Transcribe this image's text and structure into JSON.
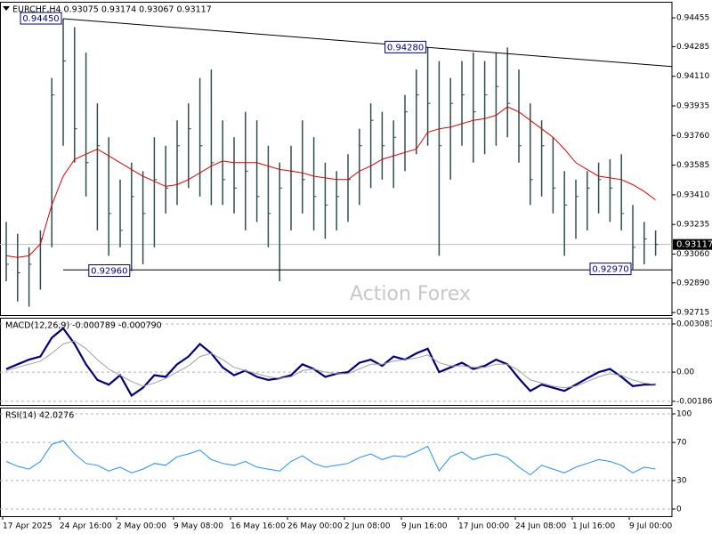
{
  "chart_data": [
    {
      "type": "ohlc",
      "title": "EURCHF,H4  0.93075 0.93174 0.93067 0.93117",
      "watermark": "Action Forex",
      "bar_color": "#2f4f4f",
      "high": [
        0.9325,
        0.9318,
        0.931,
        0.932,
        0.941,
        0.9445,
        0.944,
        0.9425,
        0.9395,
        0.9375,
        0.935,
        0.936,
        0.9355,
        0.9375,
        0.937,
        0.9385,
        0.9395,
        0.941,
        0.9415,
        0.9385,
        0.9375,
        0.939,
        0.9385,
        0.937,
        0.936,
        0.937,
        0.9385,
        0.9375,
        0.936,
        0.9355,
        0.9365,
        0.938,
        0.9395,
        0.939,
        0.9385,
        0.94,
        0.9415,
        0.9428,
        0.942,
        0.941,
        0.942,
        0.9425,
        0.942,
        0.9425,
        0.9428,
        0.9415,
        0.9395,
        0.9385,
        0.9375,
        0.9355,
        0.935,
        0.9355,
        0.936,
        0.9362,
        0.9365,
        0.9335,
        0.9325,
        0.932
      ],
      "low": [
        0.929,
        0.9278,
        0.9275,
        0.9285,
        0.931,
        0.937,
        0.936,
        0.934,
        0.932,
        0.9305,
        0.931,
        0.9296,
        0.93,
        0.931,
        0.933,
        0.9335,
        0.9345,
        0.934,
        0.9335,
        0.9335,
        0.933,
        0.932,
        0.9325,
        0.931,
        0.929,
        0.932,
        0.933,
        0.932,
        0.9315,
        0.932,
        0.9325,
        0.9335,
        0.9345,
        0.935,
        0.9345,
        0.9355,
        0.9365,
        0.937,
        0.9305,
        0.935,
        0.937,
        0.936,
        0.9365,
        0.937,
        0.9375,
        0.936,
        0.9335,
        0.934,
        0.933,
        0.9305,
        0.9315,
        0.932,
        0.933,
        0.9325,
        0.932,
        0.9297,
        0.93,
        0.9305
      ],
      "close": [
        0.93,
        0.9295,
        0.93,
        0.9315,
        0.94,
        0.942,
        0.938,
        0.936,
        0.937,
        0.933,
        0.932,
        0.934,
        0.933,
        0.935,
        0.9345,
        0.937,
        0.938,
        0.937,
        0.936,
        0.935,
        0.9345,
        0.9355,
        0.934,
        0.933,
        0.9345,
        0.9355,
        0.935,
        0.934,
        0.9335,
        0.934,
        0.935,
        0.937,
        0.9385,
        0.937,
        0.9375,
        0.939,
        0.94,
        0.9395,
        0.937,
        0.9395,
        0.94,
        0.939,
        0.94,
        0.9405,
        0.9395,
        0.937,
        0.935,
        0.937,
        0.9345,
        0.9335,
        0.934,
        0.9345,
        0.935,
        0.9345,
        0.933,
        0.931,
        0.9315,
        0.93117
      ],
      "ma": {
        "color": "#e00000",
        "values": [
          0.9305,
          0.9304,
          0.9305,
          0.9312,
          0.9335,
          0.9352,
          0.9362,
          0.9365,
          0.9368,
          0.9364,
          0.936,
          0.9356,
          0.9352,
          0.9349,
          0.9346,
          0.9347,
          0.935,
          0.9354,
          0.9358,
          0.9361,
          0.936,
          0.936,
          0.936,
          0.9358,
          0.9356,
          0.9355,
          0.9354,
          0.9352,
          0.9351,
          0.935,
          0.935,
          0.9355,
          0.9358,
          0.9362,
          0.9364,
          0.9366,
          0.9368,
          0.9378,
          0.938,
          0.9381,
          0.9383,
          0.9385,
          0.9386,
          0.9388,
          0.9393,
          0.939,
          0.9385,
          0.938,
          0.9375,
          0.9368,
          0.936,
          0.9356,
          0.9352,
          0.9351,
          0.935,
          0.9347,
          0.9343,
          0.9338
        ]
      },
      "ylim": [
        0.927,
        0.9455
      ],
      "yticks": [
        0.94455,
        {
          "value": 0.94285,
          "label": "0.94285"
        },
        {
          "value": 0.9411,
          "label": "0.94110"
        },
        0.93935,
        {
          "value": 0.9376,
          "label": "0.93760"
        },
        0.93585,
        {
          "value": 0.9341,
          "label": "0.93410"
        },
        0.93235,
        {
          "value": 0.9306,
          "label": "0.93060"
        },
        {
          "value": 0.9289,
          "label": "0.92890"
        },
        0.92715
      ],
      "last": {
        "value": 0.93117,
        "label": "0.93117"
      },
      "annotations": [
        {
          "label": "0.94450",
          "x": 5,
          "y": 0.9445
        },
        {
          "label": "0.94280",
          "x": 37,
          "y": 0.9428
        },
        {
          "label": "0.92960",
          "x": 11,
          "y": 0.9296
        },
        {
          "label": "0.92970",
          "x": 55,
          "y": 0.9297
        }
      ],
      "trendlines": [
        {
          "from": [
            5,
            0.9445
          ],
          "to": [
            57,
            0.94175
          ]
        },
        {
          "from": [
            5,
            0.92967
          ],
          "to": [
            57,
            0.92967
          ]
        }
      ]
    },
    {
      "type": "line",
      "title": "MACD(12,26,9) -0.000789 -0.000790",
      "grid": true,
      "series": [
        {
          "color": "#000080",
          "width": 2.2,
          "values": [
            0.0002,
            0.0005,
            0.0008,
            0.001,
            0.0022,
            0.0028,
            0.0018,
            0.0005,
            -0.0005,
            -0.0008,
            -0.0002,
            -0.0015,
            -0.001,
            -0.0002,
            -0.0003,
            0.0005,
            0.001,
            0.0018,
            0.0012,
            0.0003,
            -0.0002,
            0.0001,
            -0.0003,
            -0.0005,
            -0.0004,
            -0.0002,
            0.0005,
            0.0002,
            -0.0003,
            -0.0001,
            0,
            0.0006,
            0.0008,
            0.0004,
            0.001,
            0.0008,
            0.0012,
            0.0015,
            0,
            0.0003,
            0.0006,
            0.0002,
            0.0004,
            0.0008,
            0.0005,
            -0.0004,
            -0.0012,
            -0.0008,
            -0.001,
            -0.0012,
            -0.0008,
            -0.0004,
            0,
            0.0002,
            -0.0003,
            -0.0009,
            -0.0008,
            -0.000789
          ]
        },
        {
          "color": "#a0a0a0",
          "width": 1,
          "values": [
            0.0001,
            0.0003,
            0.0005,
            0.0007,
            0.0012,
            0.0018,
            0.002,
            0.0015,
            0.0008,
            0.0002,
            -0.0002,
            -0.0006,
            -0.0009,
            -0.0007,
            -0.0004,
            0,
            0.0004,
            0.001,
            0.0012,
            0.0008,
            0.0003,
            0.0001,
            -0.0001,
            -0.0003,
            -0.0004,
            -0.0003,
            0.0001,
            0.0002,
            0,
            -0.0001,
            -0.0001,
            0.0002,
            0.0005,
            0.0005,
            0.0007,
            0.0008,
            0.0009,
            0.0011,
            0.0006,
            0.0004,
            0.0004,
            0.0003,
            0.0003,
            0.0005,
            0.0005,
            0.0001,
            -0.0005,
            -0.0007,
            -0.0009,
            -0.001,
            -0.0009,
            -0.0006,
            -0.0003,
            -0.0001,
            -0.0002,
            -0.0005,
            -0.0007,
            -0.00079
          ]
        }
      ],
      "ylim": [
        -0.0021,
        0.00348
      ],
      "yticks": [
        0.003081,
        {
          "value": 0,
          "label": "0.00"
        },
        -0.001868
      ]
    },
    {
      "type": "line",
      "title": "RSI(14) 42.0276",
      "grid": true,
      "series": [
        {
          "color": "#1e90ff",
          "width": 1,
          "values": [
            50,
            45,
            42,
            50,
            68,
            72,
            58,
            48,
            46,
            40,
            44,
            38,
            42,
            48,
            46,
            55,
            58,
            62,
            52,
            48,
            46,
            50,
            44,
            42,
            40,
            50,
            56,
            48,
            44,
            46,
            48,
            54,
            58,
            52,
            56,
            55,
            60,
            66,
            40,
            55,
            60,
            52,
            56,
            58,
            54,
            44,
            36,
            46,
            42,
            38,
            44,
            48,
            52,
            50,
            46,
            38,
            44,
            42.0276
          ]
        }
      ],
      "ylim": [
        -7.5,
        106.6
      ],
      "yticks": [
        100,
        70,
        30,
        0
      ],
      "categories": [
        "17 Apr 2025",
        null,
        null,
        null,
        null,
        "24 Apr 16:00",
        null,
        null,
        null,
        null,
        "2 May 00:00",
        null,
        null,
        null,
        null,
        "9 May 08:00",
        null,
        null,
        null,
        null,
        "16 May 16:00",
        null,
        null,
        null,
        null,
        "26 May 00:00",
        null,
        null,
        null,
        null,
        "2 Jun 08:00",
        null,
        null,
        null,
        null,
        "9 Jun 16:00",
        null,
        null,
        null,
        null,
        "17 Jun 00:00",
        null,
        null,
        null,
        null,
        "24 Jun 08:00",
        null,
        null,
        null,
        null,
        "1 Jul 16:00",
        null,
        null,
        null,
        null,
        "9 Jul 00:00",
        null,
        null
      ]
    }
  ]
}
